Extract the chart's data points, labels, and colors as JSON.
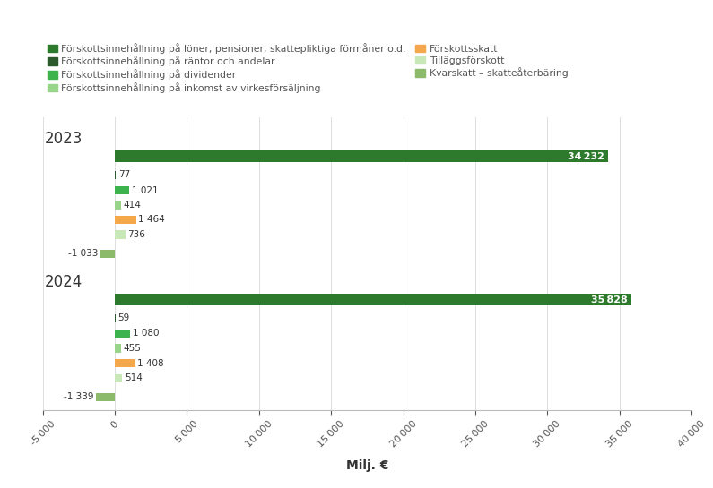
{
  "years": [
    "2023",
    "2024"
  ],
  "categories": [
    "Förskottsinnehållning på löner, pensioner, skattepliktiga förmåner o.d.",
    "Förskottsinnehållning på räntor och andelar",
    "Förskottsinnehållning på dividender",
    "Förskottsinnehållning på inkomst av virkesförsäljning",
    "Förskottsskatt",
    "Tilläggsförskott",
    "Kvarskatt – skatteåterbäring"
  ],
  "colors": [
    "#2d7a2d",
    "#2d5a2d",
    "#3db34d",
    "#98d48a",
    "#f5a84b",
    "#c8e8b8",
    "#8aba6a"
  ],
  "values_2023": [
    34232,
    77,
    1021,
    414,
    1464,
    736,
    -1033
  ],
  "values_2024": [
    35828,
    59,
    1080,
    455,
    1408,
    514,
    -1339
  ],
  "xlim": [
    -5000,
    40000
  ],
  "xticks": [
    -5000,
    0,
    5000,
    10000,
    15000,
    20000,
    25000,
    30000,
    35000,
    40000
  ],
  "xlabel": "Milj. €",
  "background_color": "#ffffff",
  "legend_labels": [
    "Förskottsinnehållning på löner, pensioner, skattepliktiga förmåner o.d.",
    "Förskottsinnehållning på räntor och andelar",
    "Förskottsinnehållning på dividender",
    "Förskottsinnehållning på inkomst av virkesförsäljning",
    "Förskottsskatt",
    "Tilläggsförskott",
    "Kvarskatt – skatteåterbäring"
  ],
  "legend_colors": [
    "#2d7a2d",
    "#2d5a2d",
    "#3db34d",
    "#98d48a",
    "#f5a84b",
    "#c8e8b8",
    "#8aba6a"
  ]
}
